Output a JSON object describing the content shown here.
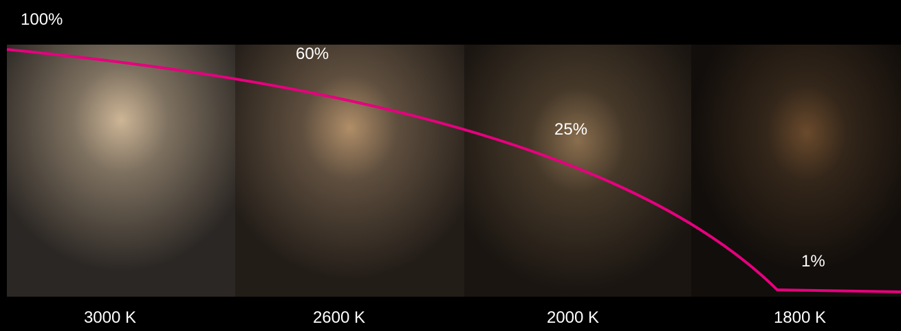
{
  "panels": [
    {
      "brightness": "100%",
      "temperature": "3000 K"
    },
    {
      "brightness": "60%",
      "temperature": "2600 K"
    },
    {
      "brightness": "25%",
      "temperature": "2000 K"
    },
    {
      "brightness": "1%",
      "temperature": "1800 K"
    }
  ]
}
